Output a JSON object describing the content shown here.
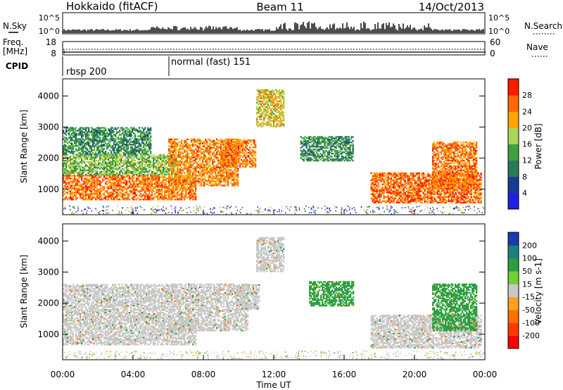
{
  "header": {
    "left_title": "Hokkaido (fitACF)",
    "center_title": "Beam 11",
    "right_title": "14/Oct/2013"
  },
  "noise_panel": {
    "label": "N.Sky",
    "left_ticks": [
      "10^5",
      "10^0"
    ],
    "right_ticks": [
      "10^5",
      "10^0"
    ],
    "right_label": "N.Search"
  },
  "freq_panel": {
    "label_line1": "Freq.",
    "label_line2": "[MHz]",
    "left_ticks": [
      "18",
      "8"
    ],
    "right_ticks": [
      "60",
      "0"
    ],
    "right_label": "Nave"
  },
  "cpid_panel": {
    "label": "CPID",
    "programs": [
      "rbsp 200",
      "normal (fast) 151"
    ]
  },
  "colors": {
    "power_scale": [
      "#2020e0",
      "#1a3a9a",
      "#2a7a5a",
      "#3fa03f",
      "#a6d65a",
      "#ffa500",
      "#ff6a00",
      "#ff1a00"
    ],
    "velocity_scale": [
      "#ff0000",
      "#ff3a00",
      "#ff7000",
      "#ffa020",
      "#c8c8c8",
      "#70d030",
      "#2aa040",
      "#1f7f7f",
      "#1a3ab0"
    ],
    "ground_scatter": "#c8c8c8"
  },
  "chart_data": [
    {
      "type": "heatmap",
      "name": "power",
      "ylabel": "Slant Range [km]",
      "yticks": [
        "1000",
        "2000",
        "3000",
        "4000"
      ],
      "colorbar_label": "Power [dB]",
      "colorbar_ticks": [
        "4",
        "8",
        "12",
        "16",
        "20",
        "24",
        "28"
      ],
      "ylim": [
        180,
        4550
      ],
      "xlim": [
        0,
        24
      ],
      "series": [
        {
          "t0": 0,
          "t1": 7.6,
          "r0": 650,
          "r1": 1450,
          "value": 27
        },
        {
          "t0": 0,
          "t1": 6.5,
          "r0": 1450,
          "r1": 2100,
          "value": 18
        },
        {
          "t0": 0,
          "t1": 5,
          "r0": 2100,
          "r1": 3000,
          "value": 14
        },
        {
          "t0": 6,
          "t1": 10,
          "r0": 1100,
          "r1": 2600,
          "value": 26
        },
        {
          "t0": 9,
          "t1": 11,
          "r0": 1700,
          "r1": 2600,
          "value": 27
        },
        {
          "t0": 11,
          "t1": 12.6,
          "r0": 3000,
          "r1": 4200,
          "value": 22
        },
        {
          "t0": 13.5,
          "t1": 16.5,
          "r0": 1900,
          "r1": 2700,
          "value": 14
        },
        {
          "t0": 17.5,
          "t1": 23.8,
          "r0": 550,
          "r1": 1500,
          "value": 28
        },
        {
          "t0": 21,
          "t1": 23.5,
          "r0": 1000,
          "r1": 2500,
          "value": 27
        }
      ]
    },
    {
      "type": "heatmap",
      "name": "velocity",
      "ylabel": "Slant Range [km]",
      "yticks": [
        "1000",
        "2000",
        "3000",
        "4000"
      ],
      "colorbar_label": "Velocity [m s-1]",
      "colorbar_ticks": [
        "200",
        "100",
        "50",
        "15",
        "-15",
        "-50",
        "-100",
        "-200"
      ],
      "xlabel": "Time UT",
      "xticks": [
        "00:00",
        "04:00",
        "08:00",
        "12:00",
        "16:00",
        "20:00",
        "00:00"
      ],
      "ylim": [
        180,
        4550
      ],
      "xlim": [
        0,
        24
      ],
      "series": [
        {
          "t0": 0,
          "t1": 7.6,
          "r0": 650,
          "r1": 1450,
          "value": 0
        },
        {
          "t0": 0,
          "t1": 6,
          "r0": 1450,
          "r1": 2600,
          "value": 0
        },
        {
          "t0": 6,
          "t1": 10.5,
          "r0": 1100,
          "r1": 2600,
          "value": 0
        },
        {
          "t0": 10,
          "t1": 11.2,
          "r0": 1800,
          "r1": 2600,
          "value": 0
        },
        {
          "t0": 11,
          "t1": 12.6,
          "r0": 3000,
          "r1": 4100,
          "value": 0
        },
        {
          "t0": 14,
          "t1": 16.5,
          "r0": 1900,
          "r1": 2700,
          "value": 40
        },
        {
          "t0": 17.5,
          "t1": 23.8,
          "r0": 550,
          "r1": 1600,
          "value": 0
        },
        {
          "t0": 21,
          "t1": 23.5,
          "r0": 1100,
          "r1": 2600,
          "value": 50
        }
      ]
    }
  ]
}
